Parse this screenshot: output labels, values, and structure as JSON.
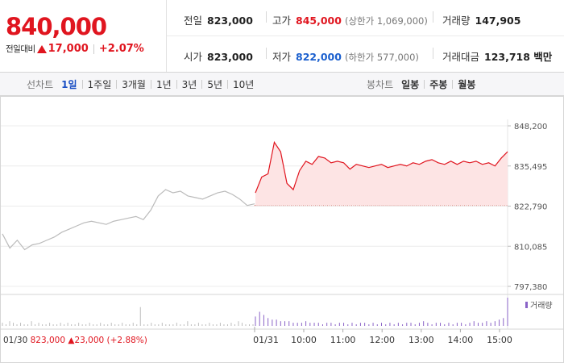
{
  "price": {
    "current": "840,000",
    "change_label": "전일대비",
    "change": "17,000",
    "change_pct": "+2.07%"
  },
  "stats": {
    "prev_close_label": "전일",
    "prev_close": "823,000",
    "high_label": "고가",
    "high": "845,000",
    "upper_limit": "(상한가 1,069,000)",
    "volume_label": "거래량",
    "volume": "147,905",
    "open_label": "시가",
    "open": "823,000",
    "low_label": "저가",
    "low": "822,000",
    "lower_limit": "(하한가 577,000)",
    "amount_label": "거래대금",
    "amount": "123,718 백만"
  },
  "tabs": {
    "line_title": "선차트",
    "line_periods": [
      "1일",
      "1주일",
      "3개월",
      "1년",
      "3년",
      "5년",
      "10년"
    ],
    "active": "1일",
    "candle_title": "봉차트",
    "candle_periods": [
      "일봉",
      "주봉",
      "월봉"
    ]
  },
  "footer": {
    "prev_date": "01/30",
    "prev_price": "823,000",
    "prev_change": "23,000",
    "prev_pct": "(+2.88%)",
    "today_date": "01/31"
  },
  "volume_legend": "거래량",
  "colors": {
    "up": "#e0151f",
    "down": "#1a5fce",
    "prev_line": "#bbbbbb",
    "fill": "#fde4e4"
  },
  "chart_data": {
    "type": "line",
    "y_ticks": [
      "848,200",
      "835,495",
      "822,790",
      "810,085",
      "797,380"
    ],
    "ylim": [
      797380,
      848200
    ],
    "x_ticks": [
      "10:00",
      "11:00",
      "12:00",
      "13:00",
      "14:00",
      "15:00"
    ],
    "baseline": 823000,
    "series": [
      {
        "values_prev_day": [
          814000,
          809500,
          812000,
          809000,
          810500,
          811000,
          812000,
          813000,
          814500,
          815500,
          816500,
          817500,
          818000,
          817500,
          817000,
          818000,
          818500,
          819000,
          819500,
          818500,
          821500,
          826000,
          828000,
          827000,
          827500,
          826000,
          825500,
          825000,
          826000,
          827000,
          827500,
          826500,
          825000,
          823000,
          823500
        ],
        "values_today": [
          827000,
          832000,
          833000,
          843000,
          840000,
          830000,
          828000,
          834000,
          837000,
          836000,
          838500,
          838000,
          836500,
          837000,
          836500,
          834500,
          836000,
          835500,
          835000,
          835500,
          836000,
          835000,
          835500,
          836000,
          835500,
          836500,
          836000,
          837000,
          837500,
          836500,
          836000,
          837000,
          836000,
          837000,
          836500,
          837000,
          836000,
          836500,
          835500,
          838000,
          840000
        ]
      }
    ],
    "volume_prev_day": [
      2,
      1,
      3,
      2,
      1,
      2,
      1,
      1,
      3,
      1,
      2,
      1,
      1,
      2,
      1,
      1,
      2,
      1,
      2,
      1,
      1,
      2,
      1,
      1,
      2,
      1,
      1,
      2,
      1,
      1,
      2,
      1,
      1,
      2,
      1,
      1,
      2,
      1,
      12,
      1,
      1,
      2,
      1,
      1,
      2,
      1,
      1,
      1,
      2,
      1,
      1,
      3,
      1,
      1,
      2,
      1,
      1,
      2,
      1,
      1,
      2,
      1,
      1,
      2,
      1,
      3,
      2,
      1,
      1,
      1
    ],
    "volume_today": [
      6,
      9,
      7,
      5,
      4,
      4,
      3,
      3,
      3,
      2,
      2,
      2,
      3,
      2,
      2,
      2,
      1,
      2,
      2,
      1,
      2,
      2,
      1,
      2,
      1,
      2,
      2,
      1,
      2,
      1,
      2,
      1,
      2,
      1,
      2,
      1,
      2,
      2,
      1,
      2,
      3,
      2,
      1,
      2,
      2,
      1,
      2,
      1,
      2,
      2,
      1,
      2,
      3,
      2,
      2,
      3,
      2,
      3,
      4,
      5,
      18
    ]
  }
}
